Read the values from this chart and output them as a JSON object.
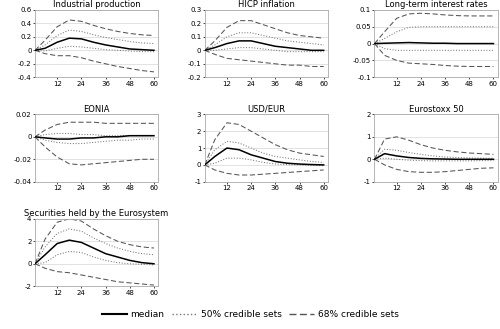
{
  "subplots": [
    {
      "title": "Industrial production",
      "ylim": [
        -0.4,
        0.6
      ],
      "yticks": [
        -0.4,
        -0.2,
        0,
        0.2,
        0.4,
        0.6
      ],
      "median": [
        0.0,
        0.03,
        0.12,
        0.18,
        0.17,
        0.12,
        0.08,
        0.05,
        0.02,
        0.01,
        0.0
      ],
      "p50_upper": [
        0.0,
        0.08,
        0.22,
        0.3,
        0.28,
        0.23,
        0.19,
        0.16,
        0.13,
        0.11,
        0.1
      ],
      "p50_lower": [
        0.0,
        -0.01,
        0.03,
        0.06,
        0.05,
        0.03,
        0.01,
        0.0,
        -0.01,
        -0.02,
        -0.02
      ],
      "p68_upper": [
        0.0,
        0.15,
        0.35,
        0.45,
        0.43,
        0.37,
        0.32,
        0.28,
        0.25,
        0.23,
        0.22
      ],
      "p68_lower": [
        0.0,
        -0.05,
        -0.08,
        -0.08,
        -0.11,
        -0.16,
        -0.2,
        -0.24,
        -0.27,
        -0.3,
        -0.32
      ]
    },
    {
      "title": "HICP inflation",
      "ylim": [
        -0.2,
        0.3
      ],
      "yticks": [
        -0.2,
        -0.1,
        0,
        0.1,
        0.2,
        0.3
      ],
      "median": [
        0.0,
        0.02,
        0.05,
        0.07,
        0.07,
        0.05,
        0.03,
        0.02,
        0.01,
        0.0,
        0.0
      ],
      "p50_upper": [
        0.0,
        0.04,
        0.1,
        0.13,
        0.13,
        0.11,
        0.09,
        0.07,
        0.06,
        0.05,
        0.04
      ],
      "p50_lower": [
        0.0,
        0.0,
        0.01,
        0.02,
        0.02,
        0.01,
        0.0,
        -0.01,
        -0.01,
        -0.01,
        -0.01
      ],
      "p68_upper": [
        0.0,
        0.07,
        0.17,
        0.22,
        0.22,
        0.19,
        0.16,
        0.13,
        0.11,
        0.1,
        0.09
      ],
      "p68_lower": [
        0.0,
        -0.03,
        -0.06,
        -0.07,
        -0.08,
        -0.09,
        -0.1,
        -0.11,
        -0.11,
        -0.12,
        -0.12
      ]
    },
    {
      "title": "Long-term interest rates",
      "ylim": [
        -0.1,
        0.1
      ],
      "yticks": [
        -0.1,
        -0.05,
        0,
        0.05,
        0.1
      ],
      "median": [
        0.0,
        0.001,
        0.002,
        0.003,
        0.002,
        0.001,
        0.001,
        0.0,
        0.0,
        0.0,
        0.0
      ],
      "p50_upper": [
        0.0,
        0.015,
        0.035,
        0.048,
        0.05,
        0.05,
        0.05,
        0.05,
        0.05,
        0.05,
        0.05
      ],
      "p50_lower": [
        0.0,
        -0.015,
        -0.02,
        -0.02,
        -0.02,
        -0.02,
        -0.02,
        -0.02,
        -0.02,
        -0.02,
        -0.02
      ],
      "p68_upper": [
        0.0,
        0.035,
        0.075,
        0.088,
        0.09,
        0.088,
        0.085,
        0.083,
        0.082,
        0.082,
        0.082
      ],
      "p68_lower": [
        0.0,
        -0.035,
        -0.05,
        -0.058,
        -0.06,
        -0.062,
        -0.065,
        -0.067,
        -0.068,
        -0.068,
        -0.068
      ]
    },
    {
      "title": "EONIA",
      "ylim": [
        -0.04,
        0.02
      ],
      "yticks": [
        -0.04,
        -0.02,
        0,
        0.02
      ],
      "median": [
        0.0,
        -0.001,
        -0.002,
        -0.002,
        -0.001,
        -0.001,
        0.0,
        0.0,
        0.001,
        0.001,
        0.001
      ],
      "p50_upper": [
        0.0,
        0.002,
        0.003,
        0.003,
        0.002,
        0.002,
        0.001,
        0.001,
        0.001,
        0.001,
        0.001
      ],
      "p50_lower": [
        0.0,
        -0.003,
        -0.005,
        -0.006,
        -0.006,
        -0.005,
        -0.004,
        -0.003,
        -0.003,
        -0.002,
        -0.002
      ],
      "p68_upper": [
        0.0,
        0.006,
        0.011,
        0.013,
        0.013,
        0.013,
        0.012,
        0.012,
        0.012,
        0.012,
        0.012
      ],
      "p68_lower": [
        0.0,
        -0.009,
        -0.018,
        -0.024,
        -0.025,
        -0.024,
        -0.023,
        -0.022,
        -0.021,
        -0.02,
        -0.02
      ]
    },
    {
      "title": "USD/EUR",
      "ylim": [
        -1,
        3
      ],
      "yticks": [
        -1,
        0,
        1,
        2,
        3
      ],
      "median": [
        0.0,
        0.5,
        1.0,
        0.9,
        0.6,
        0.4,
        0.2,
        0.1,
        0.05,
        0.02,
        0.0
      ],
      "p50_upper": [
        0.0,
        0.9,
        1.4,
        1.3,
        1.0,
        0.7,
        0.5,
        0.4,
        0.3,
        0.2,
        0.15
      ],
      "p50_lower": [
        0.0,
        0.1,
        0.4,
        0.4,
        0.3,
        0.15,
        0.05,
        0.02,
        0.0,
        -0.02,
        -0.05
      ],
      "p68_upper": [
        0.0,
        1.5,
        2.5,
        2.4,
        2.0,
        1.6,
        1.2,
        0.9,
        0.7,
        0.6,
        0.5
      ],
      "p68_lower": [
        0.0,
        -0.3,
        -0.5,
        -0.6,
        -0.6,
        -0.55,
        -0.5,
        -0.45,
        -0.4,
        -0.35,
        -0.3
      ]
    },
    {
      "title": "Eurostoxx 50",
      "ylim": [
        -1,
        2
      ],
      "yticks": [
        -1,
        0,
        1,
        2
      ],
      "median": [
        0.0,
        0.25,
        0.15,
        0.08,
        0.04,
        0.02,
        0.01,
        0.0,
        0.0,
        0.0,
        0.0
      ],
      "p50_upper": [
        0.0,
        0.45,
        0.4,
        0.3,
        0.22,
        0.15,
        0.1,
        0.08,
        0.06,
        0.05,
        0.04
      ],
      "p50_lower": [
        0.0,
        0.05,
        0.0,
        -0.04,
        -0.06,
        -0.07,
        -0.07,
        -0.07,
        -0.07,
        -0.06,
        -0.06
      ],
      "p68_upper": [
        0.0,
        0.9,
        1.0,
        0.85,
        0.65,
        0.5,
        0.4,
        0.33,
        0.28,
        0.25,
        0.22
      ],
      "p68_lower": [
        0.0,
        -0.25,
        -0.45,
        -0.55,
        -0.58,
        -0.58,
        -0.55,
        -0.5,
        -0.45,
        -0.4,
        -0.38
      ]
    },
    {
      "title": "Securities held by the Eurosystem",
      "ylim": [
        -2,
        4
      ],
      "yticks": [
        -2,
        0,
        2,
        4
      ],
      "median": [
        0.0,
        0.8,
        1.8,
        2.1,
        1.9,
        1.4,
        0.9,
        0.6,
        0.3,
        0.1,
        0.0
      ],
      "p50_upper": [
        0.0,
        1.5,
        2.7,
        3.1,
        2.9,
        2.3,
        1.8,
        1.4,
        1.1,
        0.9,
        0.8
      ],
      "p50_lower": [
        0.0,
        0.1,
        0.8,
        1.1,
        1.0,
        0.6,
        0.3,
        0.1,
        0.0,
        -0.05,
        -0.1
      ],
      "p68_upper": [
        0.0,
        2.2,
        3.7,
        4.0,
        3.8,
        3.1,
        2.5,
        2.0,
        1.7,
        1.5,
        1.4
      ],
      "p68_lower": [
        0.0,
        -0.4,
        -0.7,
        -0.8,
        -1.0,
        -1.2,
        -1.4,
        -1.6,
        -1.7,
        -1.8,
        -1.9
      ]
    }
  ],
  "x_values": [
    1,
    6,
    12,
    18,
    24,
    30,
    36,
    42,
    48,
    54,
    60
  ],
  "xticks": [
    12,
    24,
    36,
    48,
    60
  ],
  "background_color": "#ffffff"
}
